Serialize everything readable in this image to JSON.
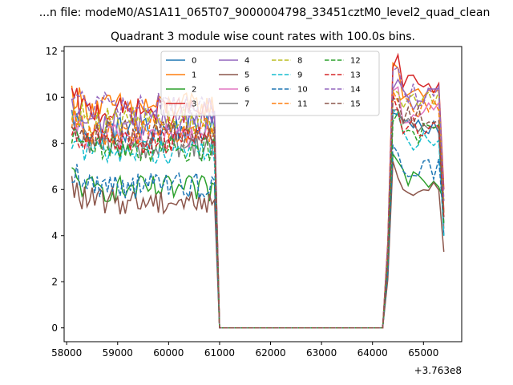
{
  "suptitle": "...n file: modeM0/AS1A11_065T07_9000004798_33451cztM0_level2_quad_clean",
  "chart_data": {
    "type": "line",
    "title": "Quadrant 3 module wise count rates with 100.0s bins.",
    "xlabel": "",
    "ylabel": "",
    "x_offset_text": "+3.763e8",
    "xlim": [
      57950,
      65750
    ],
    "ylim": [
      -0.6,
      12.2
    ],
    "x_ticks": [
      58000,
      59000,
      60000,
      61000,
      62000,
      63000,
      64000,
      65000
    ],
    "x_tick_labels": [
      "58000",
      "59000",
      "60000",
      "61000",
      "62000",
      "63000",
      "64000",
      "65000"
    ],
    "y_ticks": [
      0,
      2,
      4,
      6,
      8,
      10,
      12
    ],
    "y_tick_labels": [
      "0",
      "2",
      "4",
      "6",
      "8",
      "10",
      "12"
    ],
    "grid": false,
    "legend": {
      "placement": "top-center",
      "columns": 4
    },
    "series": [
      {
        "name": "0",
        "color": "#1f77b4",
        "dash": "solid",
        "base": 8.6,
        "tail": 8.9,
        "end": 4.0
      },
      {
        "name": "1",
        "color": "#ff7f0e",
        "dash": "solid",
        "base": 9.6,
        "tail": 10.3,
        "end": 5.0
      },
      {
        "name": "2",
        "color": "#2ca02c",
        "dash": "solid",
        "base": 6.0,
        "tail": 6.6,
        "end": 5.5
      },
      {
        "name": "3",
        "color": "#d62728",
        "dash": "solid",
        "base": 9.4,
        "tail": 10.6,
        "end": 6.0
      },
      {
        "name": "4",
        "color": "#9467bd",
        "dash": "solid",
        "base": 8.9,
        "tail": 9.9,
        "end": 5.0
      },
      {
        "name": "5",
        "color": "#8c564b",
        "dash": "solid",
        "base": 5.5,
        "tail": 6.0,
        "end": 3.3
      },
      {
        "name": "6",
        "color": "#e377c2",
        "dash": "solid",
        "base": 8.3,
        "tail": 9.3,
        "end": 4.5
      },
      {
        "name": "7",
        "color": "#7f7f7f",
        "dash": "solid",
        "base": 7.9,
        "tail": 8.7,
        "end": 4.3
      },
      {
        "name": "8",
        "color": "#bcbd22",
        "dash": "dashed",
        "base": 9.0,
        "tail": 9.8,
        "end": 5.5
      },
      {
        "name": "9",
        "color": "#17becf",
        "dash": "dashed",
        "base": 7.7,
        "tail": 8.2,
        "end": 4.0
      },
      {
        "name": "10",
        "color": "#1f77b4",
        "dash": "dashed",
        "base": 6.2,
        "tail": 6.9,
        "end": 4.5
      },
      {
        "name": "11",
        "color": "#ff7f0e",
        "dash": "dashed",
        "base": 8.5,
        "tail": 9.5,
        "end": 5.0
      },
      {
        "name": "12",
        "color": "#2ca02c",
        "dash": "dashed",
        "base": 7.8,
        "tail": 8.4,
        "end": 4.5
      },
      {
        "name": "13",
        "color": "#d62728",
        "dash": "dashed",
        "base": 8.1,
        "tail": 8.8,
        "end": 4.8
      },
      {
        "name": "14",
        "color": "#9467bd",
        "dash": "dashed",
        "base": 9.6,
        "tail": 10.1,
        "end": 5.5
      },
      {
        "name": "15",
        "color": "#8c564b",
        "dash": "dashed",
        "base": 8.4,
        "tail": 9.1,
        "end": 4.8
      }
    ],
    "segments": {
      "active1_x": [
        58100,
        60900
      ],
      "drop_x": [
        60900,
        61000
      ],
      "zero_x": [
        61000,
        64200
      ],
      "rise_x": [
        64200,
        64400
      ],
      "active2_x": [
        64400,
        65300
      ],
      "end_x": 65400,
      "step": 50
    }
  }
}
